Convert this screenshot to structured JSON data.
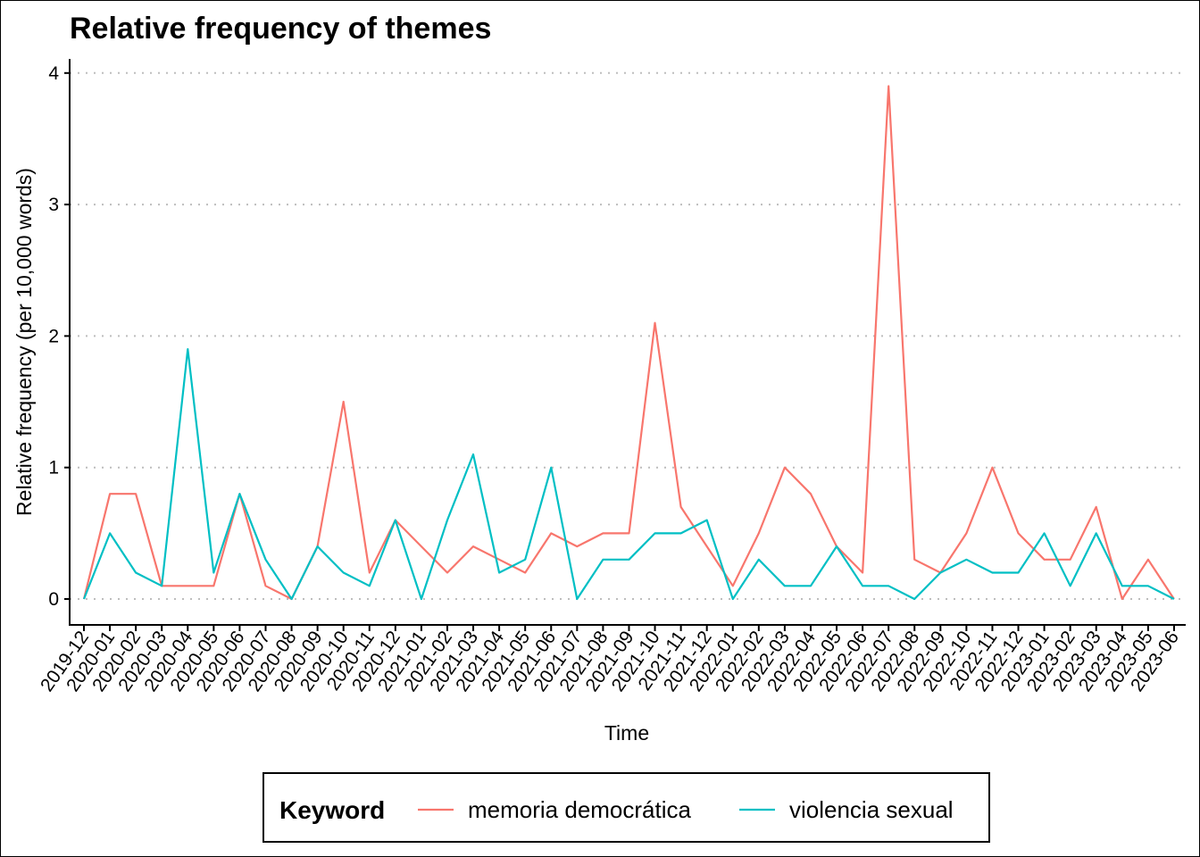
{
  "chart_data": {
    "type": "line",
    "title": "Relative frequency of themes",
    "xlabel": "Time",
    "ylabel": "Relative frequency (per 10,000 words)",
    "ylim": [
      0,
      4
    ],
    "yticks": [
      "0",
      "1",
      "2",
      "3",
      "4"
    ],
    "grid": "horizontal dotted",
    "legend_position": "bottom",
    "legend_title": "Keyword",
    "categories": [
      "2019-12",
      "2020-01",
      "2020-02",
      "2020-03",
      "2020-04",
      "2020-05",
      "2020-06",
      "2020-07",
      "2020-08",
      "2020-09",
      "2020-10",
      "2020-11",
      "2020-12",
      "2021-01",
      "2021-02",
      "2021-03",
      "2021-04",
      "2021-05",
      "2021-06",
      "2021-07",
      "2021-08",
      "2021-09",
      "2021-10",
      "2021-11",
      "2021-12",
      "2022-01",
      "2022-02",
      "2022-03",
      "2022-04",
      "2022-05",
      "2022-06",
      "2022-07",
      "2022-08",
      "2022-09",
      "2022-10",
      "2022-11",
      "2022-12",
      "2023-01",
      "2023-02",
      "2023-03",
      "2023-04",
      "2023-05",
      "2023-06"
    ],
    "series": [
      {
        "name": "memoria democrática",
        "color": "#F8766D",
        "values": [
          0,
          0.8,
          0.8,
          0.1,
          0.1,
          0.1,
          0.8,
          0.1,
          0,
          0.4,
          1.5,
          0.2,
          0.6,
          0.4,
          0.2,
          0.4,
          0.3,
          0.2,
          0.5,
          0.4,
          0.5,
          0.5,
          2.1,
          0.7,
          0.4,
          0.1,
          0.5,
          1.0,
          0.8,
          0.4,
          0.2,
          3.9,
          0.3,
          0.2,
          0.5,
          1.0,
          0.5,
          0.3,
          0.3,
          0.7,
          0,
          0.3,
          0
        ]
      },
      {
        "name": "violencia sexual",
        "color": "#00BFC4",
        "values": [
          0,
          0.5,
          0.2,
          0.1,
          1.9,
          0.2,
          0.8,
          0.3,
          0,
          0.4,
          0.2,
          0.1,
          0.6,
          0,
          0.6,
          1.1,
          0.2,
          0.3,
          1.0,
          0,
          0.3,
          0.3,
          0.5,
          0.5,
          0.6,
          0,
          0.3,
          0.1,
          0.1,
          0.4,
          0.1,
          0.1,
          0,
          0.2,
          0.3,
          0.2,
          0.2,
          0.5,
          0.1,
          0.5,
          0.1,
          0.1,
          0
        ]
      }
    ]
  }
}
